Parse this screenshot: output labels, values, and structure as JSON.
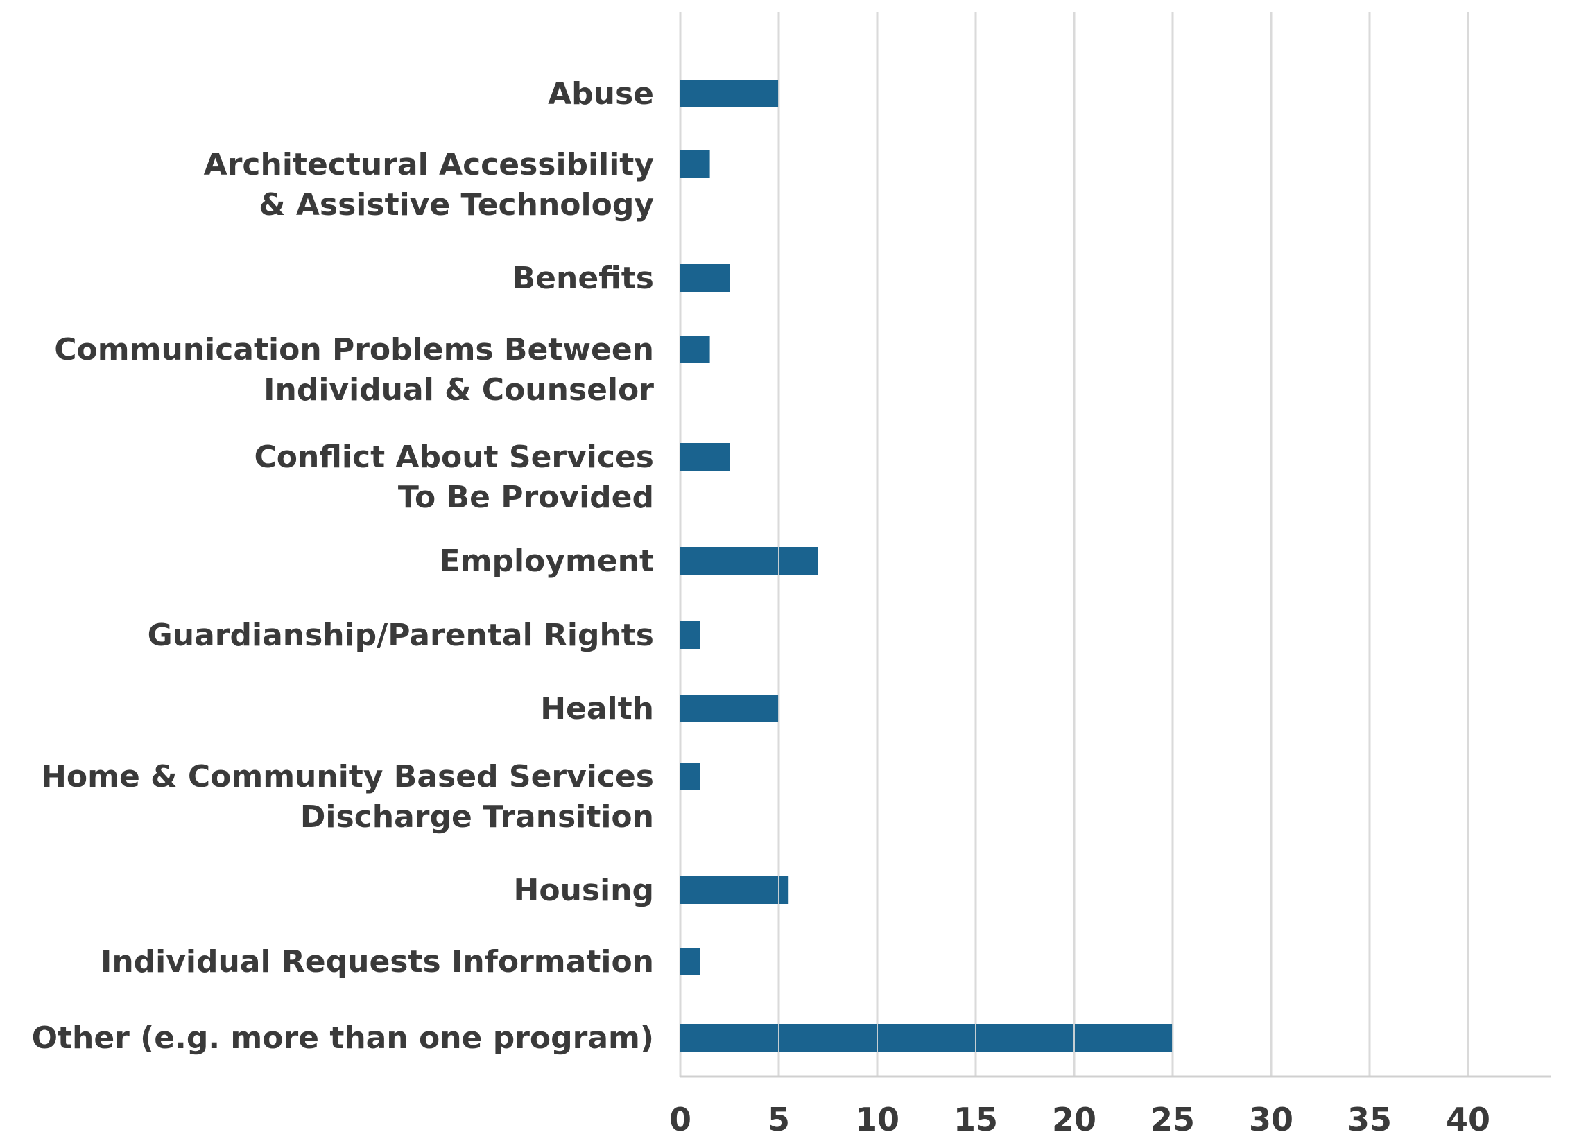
{
  "chart_data": {
    "type": "bar",
    "orientation": "horizontal",
    "title": "",
    "xlabel": "",
    "ylabel": "",
    "categories": [
      [
        "Abuse"
      ],
      [
        "Architectural Accessibility",
        "& Assistive Technology"
      ],
      [
        "Benefits"
      ],
      [
        "Communication Problems Between",
        "Individual & Counselor"
      ],
      [
        "Conflict About Services",
        "To Be Provided"
      ],
      [
        "Employment"
      ],
      [
        "Guardianship/Parental Rights"
      ],
      [
        "Health"
      ],
      [
        "Home & Community Based Services",
        "Discharge Transition"
      ],
      [
        "Housing"
      ],
      [
        "Individual Requests Information"
      ],
      [
        "Other (e.g. more than one program)"
      ]
    ],
    "values": [
      5,
      1.5,
      2.5,
      1.5,
      2.5,
      7,
      1,
      5,
      1,
      5.5,
      1,
      25
    ],
    "xlim": [
      0,
      44
    ],
    "xticks": [
      0,
      5,
      10,
      15,
      20,
      25,
      30,
      35,
      40
    ],
    "grid": true,
    "legend": "none",
    "colors": {
      "bar": "#1a638f",
      "grid": "#d9d9d9",
      "axis": "#d0d0d0",
      "text": "#3a3a3a"
    }
  }
}
